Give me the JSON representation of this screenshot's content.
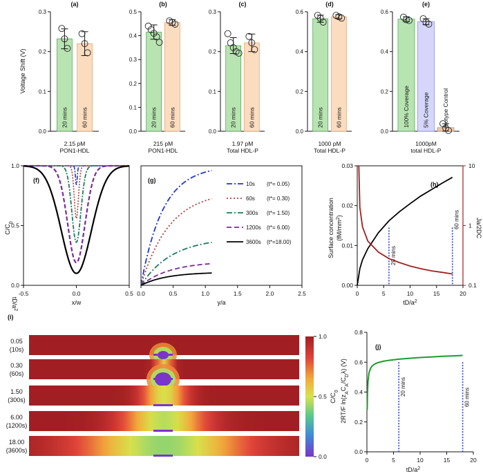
{
  "top_row": {
    "shared": {
      "ylabel": "Voltage Shift (V)",
      "legend": [
        "20 mins",
        "60 mins"
      ],
      "colors": {
        "green": "#b7e4b1",
        "green_edge": "#5aa85a",
        "orange": "#fbdcbf",
        "orange_edge": "#e3a978",
        "lav": "#d6d6fb",
        "lav_edge": "#8f8fe0",
        "pink": "#f7c7a0"
      }
    },
    "panels": [
      {
        "key": "a",
        "title": "(a)",
        "xlabel": [
          "2.15 pM",
          "PON1-HDL"
        ],
        "ylim": [
          0,
          0.3
        ],
        "yticks": [
          "0.0",
          "0.1",
          "0.2",
          "0.3"
        ],
        "bars": [
          {
            "label": "20 mins",
            "value": 0.232,
            "err": 0.025,
            "color": "green",
            "points": [
              0.258,
              0.232,
              0.208
            ]
          },
          {
            "label": "60 mins",
            "value": 0.22,
            "err": 0.03,
            "color": "orange",
            "points": [
              0.245,
              0.22,
              0.197
            ]
          }
        ]
      },
      {
        "key": "b",
        "title": "(b)",
        "xlabel": [
          "215 pM",
          "PON1-HDL"
        ],
        "ylim": [
          0,
          0.5
        ],
        "yticks": [
          "0.0",
          "0.1",
          "0.2",
          "0.3",
          "0.4",
          "0.5"
        ],
        "bars": [
          {
            "label": "20 mins",
            "value": 0.415,
            "err": 0.03,
            "color": "green",
            "points": [
              0.44,
              0.425,
              0.41,
              0.395,
              0.372
            ]
          },
          {
            "label": "60 mins",
            "value": 0.455,
            "err": 0.012,
            "color": "orange",
            "points": [
              0.462,
              0.455,
              0.448
            ]
          }
        ]
      },
      {
        "key": "c",
        "title": "(c)",
        "xlabel": [
          "1.97 pM",
          "Total HDL-P"
        ],
        "ylim": [
          0,
          0.3
        ],
        "yticks": [
          "0.0",
          "0.1",
          "0.2",
          "0.3"
        ],
        "bars": [
          {
            "label": "20 mins",
            "value": 0.215,
            "err": 0.02,
            "color": "green",
            "points": [
              0.245,
              0.222,
              0.21,
              0.2,
              0.196
            ]
          },
          {
            "label": "60 mins",
            "value": 0.222,
            "err": 0.022,
            "color": "orange",
            "points": [
              0.238,
              0.222,
              0.205
            ]
          }
        ]
      },
      {
        "key": "d",
        "title": "(d)",
        "xlabel": [
          "1000 pM",
          "Total HDL-P"
        ],
        "ylim": [
          0,
          0.6
        ],
        "yticks": [
          "0.0",
          "0.2",
          "0.4",
          "0.6"
        ],
        "bars": [
          {
            "label": "20 mins",
            "value": 0.565,
            "err": 0.018,
            "color": "green",
            "points": [
              0.582,
              0.567,
              0.548
            ]
          },
          {
            "label": "60 mins",
            "value": 0.575,
            "err": 0.01,
            "color": "orange",
            "points": [
              0.582,
              0.575,
              0.568
            ]
          }
        ]
      },
      {
        "key": "e",
        "title": "(e)",
        "xlabel": [
          "1000pM",
          "total HDL-P"
        ],
        "ylim": [
          0,
          0.6
        ],
        "yticks": [
          "0.0",
          "0.2",
          "0.4",
          "0.6"
        ],
        "bars": [
          {
            "label": "100% Coverage",
            "value": 0.563,
            "err": 0.012,
            "color": "green",
            "points": [
              0.573,
              0.56,
              0.556
            ]
          },
          {
            "label": "5% Coverage",
            "value": 0.55,
            "err": 0.015,
            "color": "lav",
            "points": [
              0.565,
              0.548,
              0.538
            ]
          },
          {
            "label": "Isotype Control",
            "value": 0.018,
            "err": 0.02,
            "color": "pink",
            "points": [
              0.038,
              0.016,
              0.004
            ]
          }
        ]
      }
    ]
  },
  "chart_data": [
    {
      "type": "line",
      "panel": "(f)",
      "ylabel": "C/C",
      "ylabel_sub": "0",
      "xlabel": "x/w",
      "xlim": [
        -0.5,
        0.5
      ],
      "ylim": [
        0,
        1.0
      ],
      "xticks": [
        "-0.5",
        "0.0",
        "0.5"
      ],
      "yticks": [
        "0.0",
        "0.5",
        "1.0"
      ],
      "profile": "1 - (1 - min) * exp(-(x/width)^2)",
      "series": [
        {
          "name": "10s",
          "min": 0.84,
          "width": 0.012
        },
        {
          "name": "60s",
          "min": 0.56,
          "width": 0.028
        },
        {
          "name": "300s",
          "min": 0.36,
          "width": 0.06
        },
        {
          "name": "1200s",
          "min": 0.19,
          "width": 0.115
        },
        {
          "name": "3600s",
          "min": 0.1,
          "width": 0.2
        }
      ]
    },
    {
      "type": "line",
      "panel": "(g)",
      "xlabel": "y/a",
      "xlim": [
        0,
        2.5
      ],
      "ylim": [
        0,
        1.0
      ],
      "xticks": [
        "0.0",
        "0.5",
        "1.0",
        "1.5",
        "2.0",
        "2.5"
      ],
      "x_end": 1.1,
      "series": [
        {
          "name": "10s",
          "label": "(t*= 0.05)",
          "plateau": 1.0,
          "scale": 0.34,
          "color": "#1f36c6",
          "dash": "8 3 2 3"
        },
        {
          "name": "60s",
          "label": "(t*= 0.30)",
          "plateau": 0.79,
          "scale": 0.44,
          "color": "#b33a3a",
          "dash": "2 3"
        },
        {
          "name": "300s",
          "label": "(t*= 1.50)",
          "plateau": 0.4,
          "scale": 0.48,
          "color": "#1f7a5a",
          "dash": "8 3 2 3"
        },
        {
          "name": "1200s",
          "label": "(t*= 6.00)",
          "plateau": 0.2,
          "scale": 0.46,
          "color": "#7a2a9a",
          "dash": "7 4"
        },
        {
          "name": "3600s",
          "label": "(t*=18.00)",
          "plateau": 0.11,
          "scale": 0.4,
          "color": "#000000",
          "dash": ""
        }
      ]
    },
    {
      "type": "line",
      "panel": "(h)",
      "xlabel": "tD/a",
      "xlabel_sup": "2",
      "ylabel": "Surface concentration",
      "ylabel2": "(fM/mm",
      "ylabel2_sup": "2",
      "ylabel2_end": ")",
      "right_ylabel": "Ja/2DC",
      "xlim": [
        0,
        20
      ],
      "ylim": [
        0,
        0.03
      ],
      "xticks": [
        "0",
        "5",
        "10",
        "15",
        "20"
      ],
      "yticks": [
        "0.00",
        "0.01",
        "0.02",
        "0.03"
      ],
      "right_log_ticks": [
        "0.1",
        "1",
        "10"
      ],
      "surface": {
        "x": [
          0,
          0.5,
          1,
          2,
          4,
          6,
          8,
          10,
          12,
          14,
          16,
          18
        ],
        "y": [
          0,
          0.0042,
          0.0064,
          0.0092,
          0.0132,
          0.0162,
          0.0185,
          0.0205,
          0.0224,
          0.024,
          0.0256,
          0.0271
        ]
      },
      "flux": {
        "x": [
          0.3,
          0.5,
          1,
          2,
          4,
          6,
          8,
          10,
          12,
          14,
          16,
          18
        ],
        "y": [
          10,
          2.0,
          0.95,
          0.55,
          0.36,
          0.28,
          0.24,
          0.21,
          0.19,
          0.175,
          0.165,
          0.155
        ]
      },
      "markers": [
        {
          "x": 6,
          "label": "20 mins"
        },
        {
          "x": 18,
          "label": "60 mins"
        }
      ]
    },
    {
      "type": "heatmap",
      "panel": "(i)",
      "ylabel": "tD/a",
      "ylabel_sup": "2",
      "colorbar_label": "C/C",
      "colorbar_sub": "0",
      "colorbar_ticks": [
        "1.0",
        "0.5",
        "0.0"
      ],
      "rows": [
        {
          "t": "0.05",
          "s": "(10s)",
          "spread": 0.03
        },
        {
          "t": "0.30",
          "s": "(60s)",
          "spread": 0.06
        },
        {
          "t": "1.50",
          "s": "(300s)",
          "spread": 0.16
        },
        {
          "t": "6.00",
          "s": "(1200s)",
          "spread": 0.3
        },
        {
          "t": "18.00",
          "s": "(3600s)",
          "spread": 0.6
        }
      ]
    },
    {
      "type": "line",
      "panel": "(j)",
      "ylabel": "2RT/F ln(z",
      "ylabel_sub1": "A",
      "ylabel_mid": "C",
      "ylabel_sub2": "A",
      "ylabel_mid2": "/C",
      "ylabel_sub3": "D",
      "ylabel_end": "λ) (V)",
      "xlabel": "tD/a",
      "xlabel_sup": "2",
      "xlim": [
        0,
        20
      ],
      "ylim": [
        0,
        0.8
      ],
      "xticks": [
        "0",
        "5",
        "10",
        "15",
        "20"
      ],
      "yticks": [
        "0.0",
        "0.2",
        "0.4",
        "0.6",
        "0.8"
      ],
      "x": [
        0.05,
        0.1,
        0.2,
        0.4,
        0.7,
        1,
        1.5,
        2,
        3,
        4,
        6,
        8,
        10,
        12,
        14,
        16,
        18
      ],
      "y": [
        0.28,
        0.39,
        0.47,
        0.53,
        0.56,
        0.575,
        0.588,
        0.596,
        0.606,
        0.612,
        0.62,
        0.626,
        0.631,
        0.635,
        0.639,
        0.642,
        0.645
      ],
      "markers": [
        {
          "x": 6,
          "label": "20 mins"
        },
        {
          "x": 18,
          "label": "60 mins"
        }
      ]
    }
  ]
}
